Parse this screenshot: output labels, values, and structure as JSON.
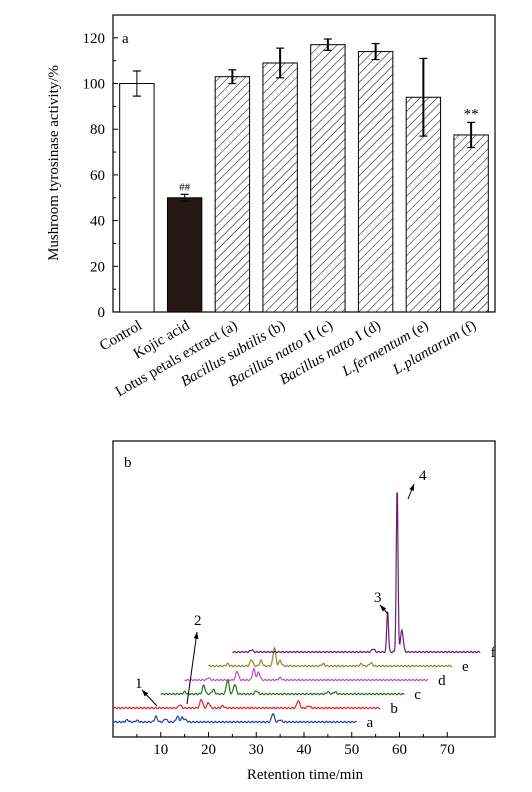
{
  "chart_data": [
    {
      "type": "bar",
      "panel_label": "a",
      "ylabel": "Mushroom tyrosinase activity/%",
      "ylim": [
        0,
        130
      ],
      "yticks": [
        0,
        20,
        40,
        60,
        80,
        100,
        120
      ],
      "categories": [
        {
          "parts": [
            {
              "text": "Control",
              "italic": false
            }
          ]
        },
        {
          "parts": [
            {
              "text": "Kojic acid",
              "italic": false
            }
          ]
        },
        {
          "parts": [
            {
              "text": "Lotus petals extract (a)",
              "italic": false
            }
          ]
        },
        {
          "parts": [
            {
              "text": "Bacillus subtilis",
              "italic": true
            },
            {
              "text": " (b)",
              "italic": false
            }
          ]
        },
        {
          "parts": [
            {
              "text": "Bacillus natto",
              "italic": true
            },
            {
              "text": " II (c)",
              "italic": false
            }
          ]
        },
        {
          "parts": [
            {
              "text": "Bacillus natto",
              "italic": true
            },
            {
              "text": " I (d)",
              "italic": false
            }
          ]
        },
        {
          "parts": [
            {
              "text": "L.fermentum",
              "italic": true
            },
            {
              "text": " (e)",
              "italic": false
            }
          ]
        },
        {
          "parts": [
            {
              "text": "L.plantarum",
              "italic": true
            },
            {
              "text": " (f)",
              "italic": false
            }
          ]
        }
      ],
      "values": [
        100,
        50,
        103,
        109,
        117,
        114,
        94,
        77.5
      ],
      "errors": [
        5.5,
        1.5,
        3,
        6.5,
        2.5,
        3.5,
        17,
        5.5
      ],
      "fills": [
        "white",
        "black",
        "hatch",
        "hatch",
        "hatch",
        "hatch",
        "hatch",
        "hatch"
      ],
      "annotations": [
        "",
        "##",
        "",
        "",
        "",
        "",
        "",
        "**"
      ]
    },
    {
      "type": "line",
      "panel_label": "b",
      "xlabel": "Retention time/min",
      "xticks": [
        10,
        20,
        30,
        40,
        50,
        60,
        70
      ],
      "xlim": [
        0,
        80
      ],
      "series": [
        {
          "name": "a",
          "color": "#1f3fa6",
          "offset_min": 0,
          "baseline": 0,
          "x_start": 0,
          "x_end": 51,
          "peaks": [
            [
              3,
              2
            ],
            [
              5,
              1.5
            ],
            [
              9,
              5
            ],
            [
              11,
              3
            ],
            [
              13.5,
              5
            ],
            [
              14.5,
              4
            ],
            [
              15.2,
              2
            ],
            [
              33.5,
              8
            ],
            [
              35,
              2
            ]
          ]
        },
        {
          "name": "b",
          "color": "#e52222",
          "offset_min": 0,
          "baseline": 1,
          "x_start": 0,
          "x_end": 56,
          "peaks": [
            [
              14,
              3
            ],
            [
              18.5,
              8
            ],
            [
              20,
              5
            ],
            [
              23,
              2
            ],
            [
              38.8,
              7
            ],
            [
              41,
              2
            ]
          ]
        },
        {
          "name": "c",
          "color": "#1a7a1a",
          "offset_min": 0,
          "baseline": 2,
          "x_start": 10,
          "x_end": 61,
          "peaks": [
            [
              15,
              2
            ],
            [
              19,
              8
            ],
            [
              21,
              4
            ],
            [
              24,
              13
            ],
            [
              25.5,
              9
            ],
            [
              30,
              3
            ],
            [
              45,
              2
            ],
            [
              46.5,
              2
            ]
          ]
        },
        {
          "name": "d",
          "color": "#c04fbf",
          "offset_min": 0,
          "baseline": 3,
          "x_start": 15,
          "x_end": 66,
          "peaks": [
            [
              20,
              2
            ],
            [
              26,
              8
            ],
            [
              29.5,
              10
            ],
            [
              30.5,
              7
            ],
            [
              35,
              2
            ]
          ]
        },
        {
          "name": "e",
          "color": "#8a8a2a",
          "offset_min": 0,
          "baseline": 4,
          "x_start": 20,
          "x_end": 71,
          "peaks": [
            [
              24,
              2
            ],
            [
              29,
              6
            ],
            [
              31,
              5
            ],
            [
              33.8,
              17
            ],
            [
              35,
              5
            ],
            [
              44,
              2
            ],
            [
              52,
              2
            ],
            [
              54,
              3
            ]
          ]
        },
        {
          "name": "f",
          "color": "#6e1a75",
          "offset_min": 0,
          "baseline": 5,
          "x_start": 25,
          "x_end": 77,
          "peaks": [
            [
              29,
              2
            ],
            [
              54.5,
              3
            ],
            [
              57.5,
              38
            ],
            [
              59.5,
              150
            ],
            [
              60.5,
              20
            ]
          ]
        }
      ],
      "peak_labels": [
        "1",
        "2",
        "3",
        "4"
      ]
    }
  ]
}
